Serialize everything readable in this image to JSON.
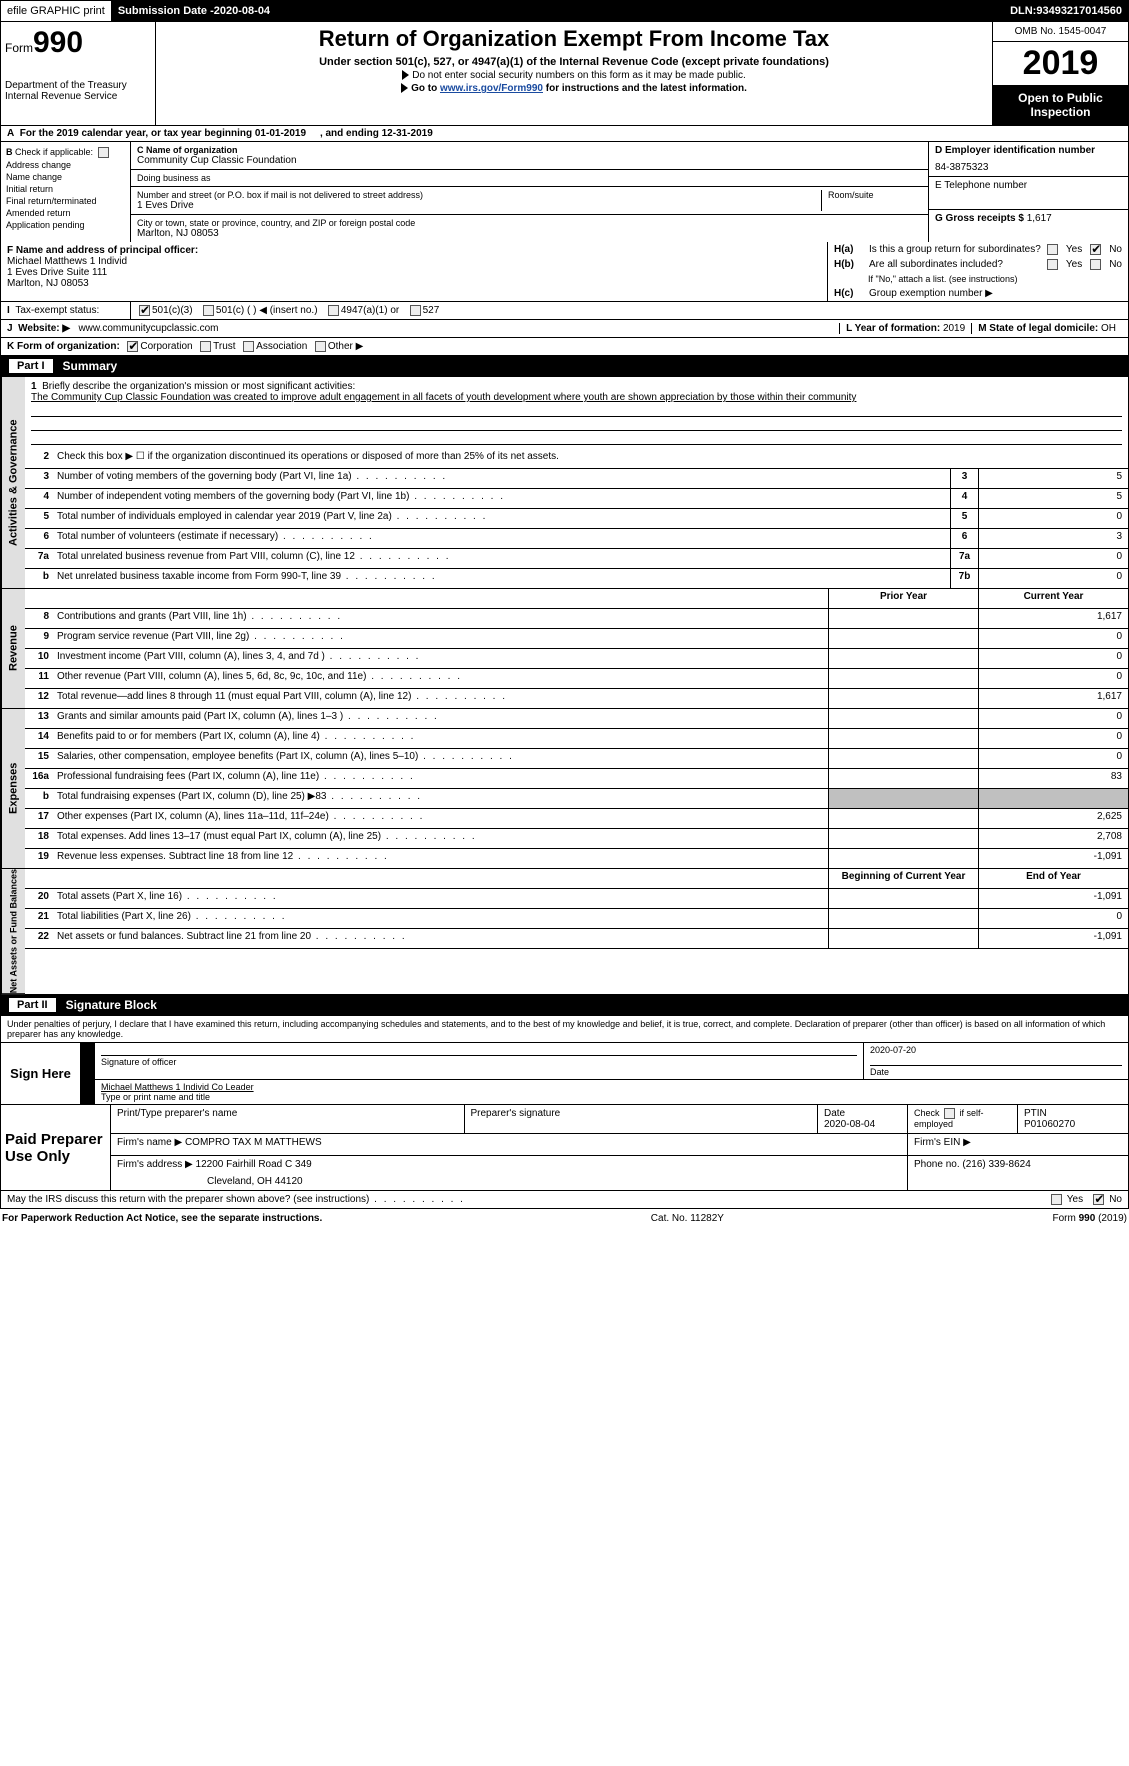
{
  "topbar": {
    "efile": "efile GRAPHIC print",
    "submission_label": "Submission Date - ",
    "submission_date": "2020-08-04",
    "dln_label": "DLN: ",
    "dln": "93493217014560"
  },
  "header": {
    "form_prefix": "Form",
    "form_num": "990",
    "dept1": "Department of the Treasury",
    "dept2": "Internal Revenue Service",
    "title": "Return of Organization Exempt From Income Tax",
    "subtitle": "Under section 501(c), 527, or 4947(a)(1) of the Internal Revenue Code (except private foundations)",
    "note1": "Do not enter social security numbers on this form as it may be made public.",
    "note2_pre": "Go to ",
    "note2_link": "www.irs.gov/Form990",
    "note2_post": " for instructions and the latest information.",
    "omb": "OMB No. 1545-0047",
    "year": "2019",
    "open_public": "Open to Public Inspection"
  },
  "row_a": {
    "text_pre": "For the 2019 calendar year, or tax year beginning ",
    "begin": "01-01-2019",
    "mid": ", and ending ",
    "end": "12-31-2019"
  },
  "col_b": {
    "header": "Check if applicable:",
    "items": [
      "Address change",
      "Name change",
      "Initial return",
      "Final return/terminated",
      "Amended return",
      "Application pending"
    ]
  },
  "col_c": {
    "name_label": "C Name of organization",
    "name": "Community Cup Classic Foundation",
    "dba_label": "Doing business as",
    "dba": "",
    "street_label": "Number and street (or P.O. box if mail is not delivered to street address)",
    "street": "1 Eves Drive",
    "room_label": "Room/suite",
    "room": "",
    "city_label": "City or town, state or province, country, and ZIP or foreign postal code",
    "city": "Marlton, NJ  08053"
  },
  "col_de": {
    "d_label": "D Employer identification number",
    "d_val": "84-3875323",
    "e_label": "E Telephone number",
    "e_val": "",
    "g_label": "G Gross receipts $ ",
    "g_val": "1,617"
  },
  "col_f": {
    "label": "F  Name and address of principal officer:",
    "name": "Michael Matthews 1 Individ",
    "street": "1 Eves Drive Suite 111",
    "city": "Marlton, NJ  08053"
  },
  "col_h": {
    "ha_label": "H(a)",
    "ha_text": "Is this a group return for subordinates?",
    "hb_label": "H(b)",
    "hb_text": "Are all subordinates included?",
    "hb_note": "If \"No,\" attach a list. (see instructions)",
    "hc_label": "H(c)",
    "hc_text": "Group exemption number ▶",
    "yes": "Yes",
    "no": "No"
  },
  "line_i": {
    "label": "Tax-exempt status:",
    "opts": [
      "501(c)(3)",
      "501(c) (  ) ◀ (insert no.)",
      "4947(a)(1) or",
      "527"
    ]
  },
  "line_j": {
    "label": "Website: ▶",
    "val": "www.communitycupclassic.com",
    "l_label": "L Year of formation: ",
    "l_val": "2019",
    "m_label": "M State of legal domicile: ",
    "m_val": "OH"
  },
  "line_k": {
    "label": "K Form of organization:",
    "opts": [
      "Corporation",
      "Trust",
      "Association",
      "Other ▶"
    ]
  },
  "part1": {
    "num": "Part I",
    "title": "Summary"
  },
  "mission": {
    "num": "1",
    "label": "Briefly describe the organization's mission or most significant activities:",
    "text": "The Community Cup Classic Foundation was created to improve adult engagement in all facets of youth development where youth are shown appreciation by those within their community"
  },
  "activities": {
    "tab": "Activities & Governance",
    "lines": [
      {
        "n": "2",
        "t": "Check this box ▶ ☐ if the organization discontinued its operations or disposed of more than 25% of its net assets."
      },
      {
        "n": "3",
        "t": "Number of voting members of the governing body (Part VI, line 1a)",
        "box": "3",
        "v": "5"
      },
      {
        "n": "4",
        "t": "Number of independent voting members of the governing body (Part VI, line 1b)",
        "box": "4",
        "v": "5"
      },
      {
        "n": "5",
        "t": "Total number of individuals employed in calendar year 2019 (Part V, line 2a)",
        "box": "5",
        "v": "0"
      },
      {
        "n": "6",
        "t": "Total number of volunteers (estimate if necessary)",
        "box": "6",
        "v": "3"
      },
      {
        "n": "7a",
        "t": "Total unrelated business revenue from Part VIII, column (C), line 12",
        "box": "7a",
        "v": "0"
      },
      {
        "n": "b",
        "t": "Net unrelated business taxable income from Form 990-T, line 39",
        "box": "7b",
        "v": "0"
      }
    ]
  },
  "revenue": {
    "tab": "Revenue",
    "hdr_prior": "Prior Year",
    "hdr_current": "Current Year",
    "lines": [
      {
        "n": "8",
        "t": "Contributions and grants (Part VIII, line 1h)",
        "p": "",
        "c": "1,617"
      },
      {
        "n": "9",
        "t": "Program service revenue (Part VIII, line 2g)",
        "p": "",
        "c": "0"
      },
      {
        "n": "10",
        "t": "Investment income (Part VIII, column (A), lines 3, 4, and 7d )",
        "p": "",
        "c": "0"
      },
      {
        "n": "11",
        "t": "Other revenue (Part VIII, column (A), lines 5, 6d, 8c, 9c, 10c, and 11e)",
        "p": "",
        "c": "0"
      },
      {
        "n": "12",
        "t": "Total revenue—add lines 8 through 11 (must equal Part VIII, column (A), line 12)",
        "p": "",
        "c": "1,617"
      }
    ]
  },
  "expenses": {
    "tab": "Expenses",
    "lines": [
      {
        "n": "13",
        "t": "Grants and similar amounts paid (Part IX, column (A), lines 1–3 )",
        "p": "",
        "c": "0"
      },
      {
        "n": "14",
        "t": "Benefits paid to or for members (Part IX, column (A), line 4)",
        "p": "",
        "c": "0"
      },
      {
        "n": "15",
        "t": "Salaries, other compensation, employee benefits (Part IX, column (A), lines 5–10)",
        "p": "",
        "c": "0"
      },
      {
        "n": "16a",
        "t": "Professional fundraising fees (Part IX, column (A), line 11e)",
        "p": "",
        "c": "83"
      },
      {
        "n": "b",
        "t": "Total fundraising expenses (Part IX, column (D), line 25) ▶83",
        "p": "shade",
        "c": "shade"
      },
      {
        "n": "17",
        "t": "Other expenses (Part IX, column (A), lines 11a–11d, 11f–24e)",
        "p": "",
        "c": "2,625"
      },
      {
        "n": "18",
        "t": "Total expenses. Add lines 13–17 (must equal Part IX, column (A), line 25)",
        "p": "",
        "c": "2,708"
      },
      {
        "n": "19",
        "t": "Revenue less expenses. Subtract line 18 from line 12",
        "p": "",
        "c": "-1,091"
      }
    ]
  },
  "netassets": {
    "tab": "Net Assets or Fund Balances",
    "hdr_begin": "Beginning of Current Year",
    "hdr_end": "End of Year",
    "lines": [
      {
        "n": "20",
        "t": "Total assets (Part X, line 16)",
        "p": "",
        "c": "-1,091"
      },
      {
        "n": "21",
        "t": "Total liabilities (Part X, line 26)",
        "p": "",
        "c": "0"
      },
      {
        "n": "22",
        "t": "Net assets or fund balances. Subtract line 21 from line 20",
        "p": "",
        "c": "-1,091"
      }
    ]
  },
  "part2": {
    "num": "Part II",
    "title": "Signature Block"
  },
  "penalties": "Under penalties of perjury, I declare that I have examined this return, including accompanying schedules and statements, and to the best of my knowledge and belief, it is true, correct, and complete. Declaration of preparer (other than officer) is based on all information of which preparer has any knowledge.",
  "sign": {
    "label": "Sign Here",
    "sig_label": "Signature of officer",
    "date": "2020-07-20",
    "date_label": "Date",
    "name": "Michael Matthews 1 Individ  Co Leader",
    "name_label": "Type or print name and title"
  },
  "prep": {
    "label": "Paid Preparer Use Only",
    "h1": "Print/Type preparer's name",
    "h2": "Preparer's signature",
    "h3": "Date",
    "date": "2020-08-04",
    "h4_pre": "Check ",
    "h4_post": " if self-employed",
    "h5": "PTIN",
    "ptin": "P01060270",
    "firm_name_label": "Firm's name    ▶ ",
    "firm_name": "COMPRO TAX M MATTHEWS",
    "firm_ein_label": "Firm's EIN ▶",
    "firm_addr_label": "Firm's address ▶ ",
    "firm_addr1": "12200 Fairhill Road C 349",
    "firm_addr2": "Cleveland, OH  44120",
    "phone_label": "Phone no. ",
    "phone": "(216) 339-8624"
  },
  "discuss": {
    "text": "May the IRS discuss this return with the preparer shown above? (see instructions)",
    "yes": "Yes",
    "no": "No"
  },
  "footer": {
    "left": "For Paperwork Reduction Act Notice, see the separate instructions.",
    "mid": "Cat. No. 11282Y",
    "right_pre": "Form ",
    "right_form": "990",
    "right_post": " (2019)"
  },
  "colors": {
    "black": "#000000",
    "white": "#ffffff",
    "shade": "#c0c0c0",
    "tab_bg": "#e0e0e0",
    "link": "#1a4ba0"
  }
}
